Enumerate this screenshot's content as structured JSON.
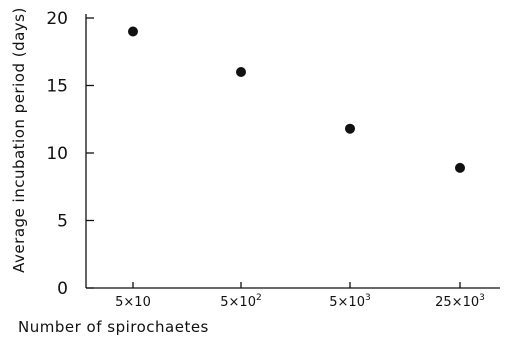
{
  "chart_data": {
    "type": "scatter",
    "ylabel": "Average incubation period (days)",
    "xlabel": "Number of spirochaetes",
    "categories": [
      {
        "base": "5×10",
        "exp": ""
      },
      {
        "base": "5×10",
        "exp": "2"
      },
      {
        "base": "5×10",
        "exp": "3"
      },
      {
        "base": "25×10",
        "exp": "3"
      }
    ],
    "values": [
      19,
      16,
      11.8,
      8.9
    ],
    "yticks": [
      "0",
      "5",
      "10",
      "15",
      "20"
    ],
    "ylim": [
      0,
      20
    ],
    "grid": false
  }
}
